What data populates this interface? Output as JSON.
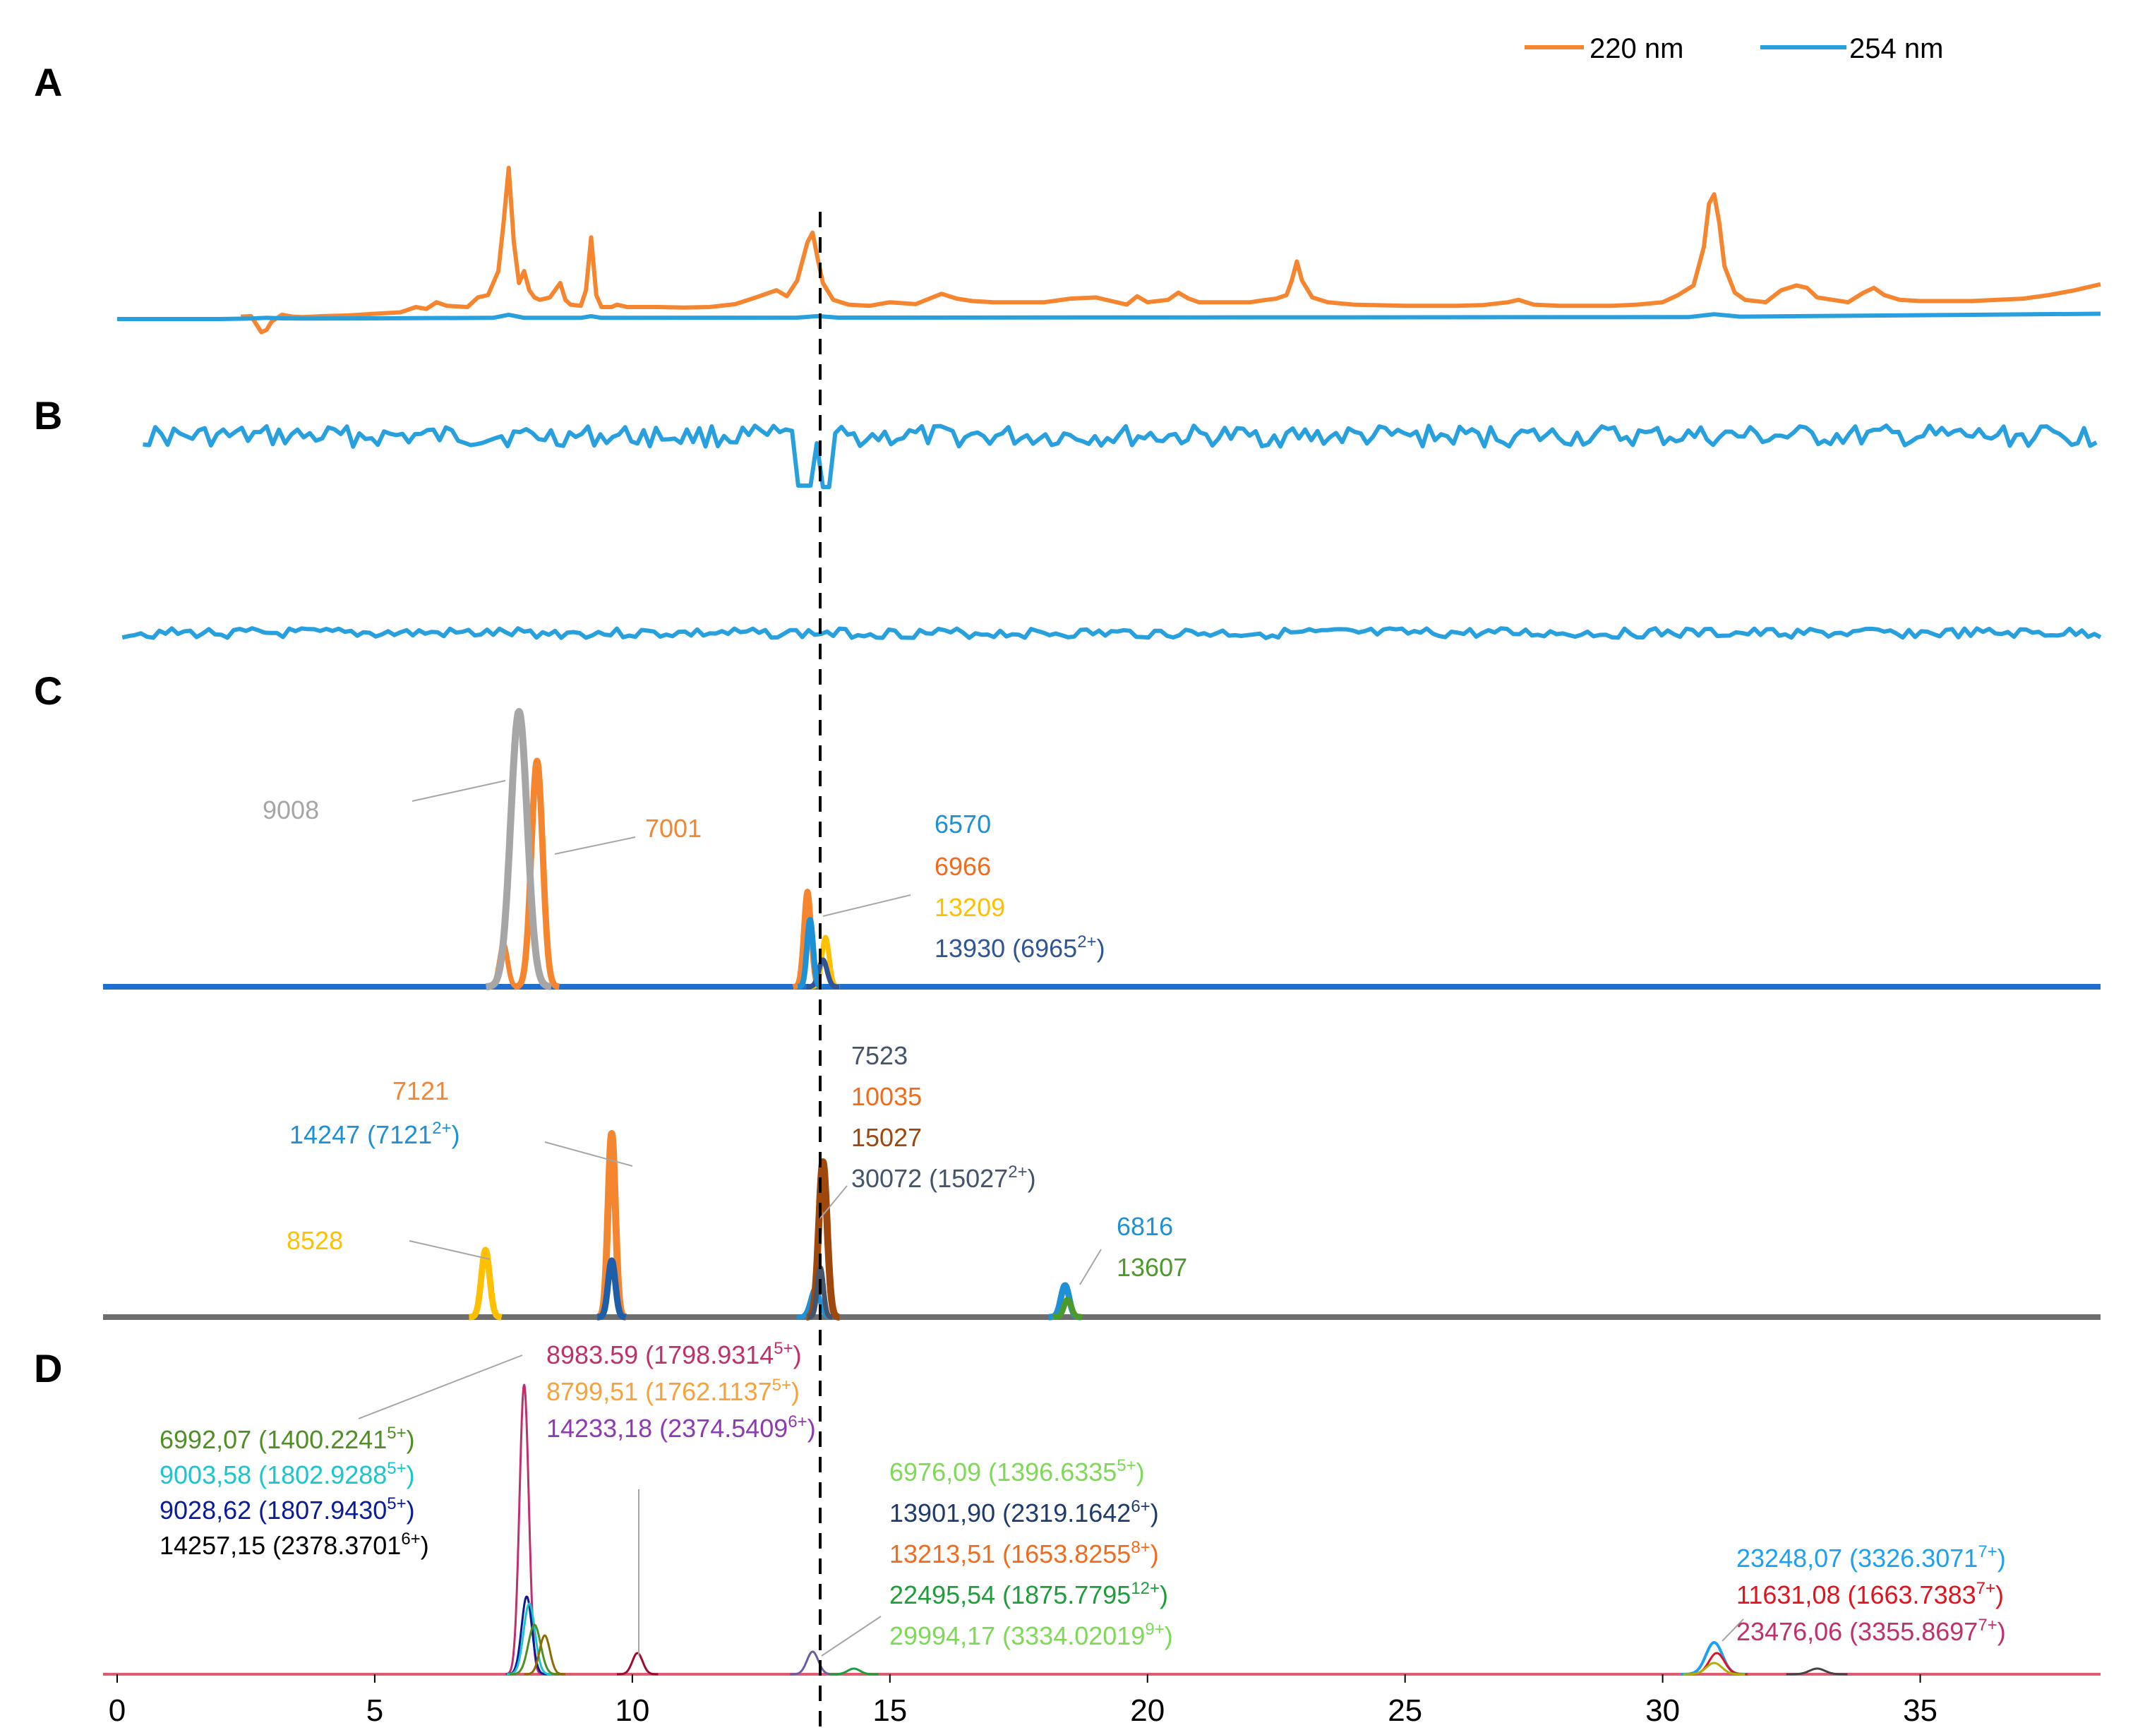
{
  "chart_data": [
    {
      "panel": "A",
      "type": "line",
      "legend_position": "top-right",
      "series": [
        {
          "name": "220 nm",
          "color": "#F5862F",
          "x": [
            2.4,
            2.6,
            2.8,
            2.9,
            3.0,
            3.2,
            3.4,
            3.6,
            3.8,
            4,
            4.5,
            5,
            5.5,
            5.8,
            6.0,
            6.2,
            6.4,
            6.8,
            7.0,
            7.2,
            7.4,
            7.5,
            7.6,
            7.7,
            7.8,
            7.9,
            8.0,
            8.1,
            8.2,
            8.4,
            8.6,
            8.7,
            8.8,
            9.0,
            9.1,
            9.2,
            9.3,
            9.4,
            9.6,
            9.7,
            9.9,
            10.5,
            11,
            11.5,
            12,
            12.4,
            12.8,
            13.0,
            13.2,
            13.4,
            13.5,
            13.6,
            13.7,
            13.9,
            14.2,
            14.6,
            15,
            15.5,
            16,
            16.3,
            16.6,
            17,
            17.5,
            18,
            18.5,
            19,
            19.3,
            19.6,
            19.8,
            20,
            20.4,
            20.6,
            20.8,
            21,
            21.5,
            22,
            22.3,
            22.5,
            22.7,
            22.8,
            22.9,
            23.0,
            23.2,
            23.5,
            24,
            25,
            26,
            26.5,
            27,
            27.2,
            27.5,
            28,
            28.5,
            29,
            29.5,
            30,
            30.3,
            30.6,
            30.8,
            30.9,
            31.0,
            31.1,
            31.2,
            31.4,
            31.6,
            32,
            32.3,
            32.6,
            32.8,
            33,
            33.3,
            33.6,
            33.9,
            34.1,
            34.3,
            34.6,
            35,
            35.5,
            36,
            36.5,
            37,
            37.5,
            38,
            38.5
          ],
          "y": [
            0.1,
            0.12,
            -0.55,
            -0.45,
            -0.1,
            0.18,
            0.1,
            0.08,
            0.1,
            0.12,
            0.15,
            0.22,
            0.28,
            0.5,
            0.42,
            0.7,
            0.55,
            0.5,
            0.9,
            1.0,
            2.0,
            4.0,
            6.3,
            3.2,
            1.5,
            2.0,
            1.2,
            0.9,
            0.8,
            0.9,
            1.5,
            0.8,
            0.6,
            0.55,
            1.2,
            3.4,
            1.0,
            0.5,
            0.5,
            0.6,
            0.5,
            0.5,
            0.48,
            0.5,
            0.62,
            0.9,
            1.2,
            0.95,
            1.6,
            3.2,
            3.6,
            2.5,
            1.5,
            0.8,
            0.6,
            0.55,
            0.7,
            0.62,
            1.05,
            0.85,
            0.75,
            0.7,
            0.7,
            0.7,
            0.85,
            0.9,
            0.75,
            0.6,
            0.95,
            0.7,
            0.8,
            1.1,
            0.85,
            0.7,
            0.7,
            0.7,
            0.8,
            0.85,
            1.0,
            1.6,
            2.4,
            1.6,
            0.9,
            0.7,
            0.6,
            0.55,
            0.55,
            0.58,
            0.7,
            0.8,
            0.6,
            0.55,
            0.55,
            0.55,
            0.6,
            0.7,
            1.0,
            1.4,
            3.0,
            4.8,
            5.2,
            4.0,
            2.2,
            1.1,
            0.8,
            0.7,
            1.2,
            1.4,
            1.3,
            0.9,
            0.8,
            0.7,
            1.1,
            1.3,
            1.0,
            0.8,
            0.75,
            0.75,
            0.75,
            0.8,
            0.85,
            1.0,
            1.2,
            1.45
          ]
        },
        {
          "name": "254 nm",
          "color": "#29A0DE",
          "x": [
            0,
            2,
            2.6,
            2.9,
            3.2,
            3.6,
            5,
            7.3,
            7.6,
            7.9,
            9,
            9.2,
            9.4,
            13.2,
            13.6,
            14,
            30.5,
            31,
            31.5,
            38.5
          ],
          "y": [
            0,
            0,
            0.02,
            0.05,
            0.03,
            0.02,
            0.03,
            0.05,
            0.18,
            0.05,
            0.05,
            0.12,
            0.05,
            0.06,
            0.12,
            0.06,
            0.08,
            0.2,
            0.1,
            0.22
          ]
        }
      ]
    },
    {
      "panel": "B",
      "type": "line",
      "series": [
        {
          "name": "",
          "color": "#29A0DE",
          "role": "upper-trace"
        },
        {
          "name": "",
          "color": "#29A0DE",
          "role": "lower-trace"
        }
      ]
    },
    {
      "panel": "C",
      "type": "line",
      "annotations_upper": {
        "left_label": {
          "text": "9008",
          "color": "#A6A6A6"
        },
        "mid_label": {
          "text": "7001",
          "color": "#F5862F"
        },
        "group": [
          {
            "text": "6570",
            "color": "#1E90D6"
          },
          {
            "text": "6966",
            "color": "#F26B1D"
          },
          {
            "text": "13209",
            "color": "#FFC000"
          },
          {
            "text": "13930 (6965",
            "sup": "2+",
            "tail": ")",
            "color": "#2F5597"
          }
        ]
      },
      "annotations_lower": {
        "g1": [
          {
            "text": "7121",
            "color": "#F5862F"
          },
          {
            "text": "14247 (7121",
            "sup": "2+",
            "tail": ")",
            "color": "#1E90D6"
          }
        ],
        "g2": {
          "text": "8528",
          "color": "#FFC000"
        },
        "g3": [
          {
            "text": "7523",
            "color": "#44546A"
          },
          {
            "text": "10035",
            "color": "#F26B1D"
          },
          {
            "text": "15027",
            "color": "#9E480E"
          },
          {
            "text": "30072 (15027",
            "sup": "2+",
            "tail": ")",
            "color": "#44546A"
          }
        ],
        "g4": [
          {
            "text": "6816",
            "color": "#1E90D6"
          },
          {
            "text": "13607",
            "color": "#4C9A2A"
          }
        ]
      }
    },
    {
      "panel": "D",
      "type": "line",
      "x_ticks": [
        "0",
        "5",
        "10",
        "15",
        "20",
        "25",
        "30",
        "35"
      ],
      "x_range": [
        0,
        38.5
      ],
      "marker_x": 13.7,
      "annotations": {
        "top": [
          {
            "text": "8983.59 (1798.9314",
            "sup": "5+",
            "tail": ")",
            "color": "#C0306E"
          },
          {
            "text": "8799,51 (1762.1137",
            "sup": "5+",
            "tail": ")",
            "color": "#F7A23B"
          },
          {
            "text": "14233,18 (2374.5409",
            "sup": "6+",
            "tail": ")",
            "color": "#8E3BB3"
          }
        ],
        "left": [
          {
            "text": "6992,07 (1400.2241",
            "sup": "5+",
            "tail": ")",
            "color": "#4F8F23"
          },
          {
            "text": "9003,58 (1802.9288",
            "sup": "5+",
            "tail": ")",
            "color": "#17C6CF"
          },
          {
            "text": "9028,62 (1807.9430",
            "sup": "5+",
            "tail": ")",
            "color": "#0B1C99"
          },
          {
            "text": "14257,15 (2378.3701",
            "sup": "6+",
            "tail": ")",
            "color": "#000000"
          }
        ],
        "middle": [
          {
            "text": "6976,09 (1396.6335",
            "sup": "5+",
            "tail": ")",
            "color": "#7ED957"
          },
          {
            "text": "13901,90 (2319.1642",
            "sup": "6+",
            "tail": ")",
            "color": "#1F3A6E"
          },
          {
            "text": "13213,51 (1653.8255",
            "sup": "8+",
            "tail": ")",
            "color": "#F26B1D"
          },
          {
            "text": "22495,54 (1875.7795",
            "sup": "12+",
            "tail": ")",
            "color": "#1E9E3A"
          },
          {
            "text": "29994,17 (3334.02019",
            "sup": "9+",
            "tail": ")",
            "color": "#7ED957"
          }
        ],
        "right": [
          {
            "text": "23248,07 (3326.3071",
            "sup": "7+",
            "tail": ")",
            "color": "#1EA0F0"
          },
          {
            "text": "11631,08 (1663.7383",
            "sup": "7+",
            "tail": ")",
            "color": "#E0141E"
          },
          {
            "text": "23476,06 (3355.8697",
            "sup": "7+",
            "tail": ")",
            "color": "#C0306E"
          }
        ]
      }
    }
  ],
  "panel_letters": [
    "A",
    "B",
    "C",
    "D"
  ]
}
